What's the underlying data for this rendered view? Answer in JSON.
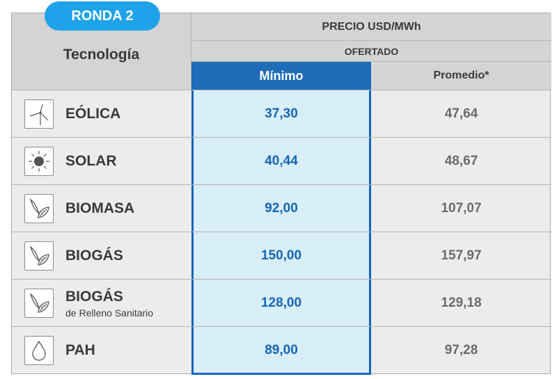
{
  "badge": "RONDA 2",
  "headers": {
    "technology": "Tecnología",
    "price": "PRECIO USD/MWh",
    "offered": "OFERTADO",
    "minimum": "Mínimo",
    "average": "Promedio*"
  },
  "rows": [
    {
      "name": "EÓLICA",
      "sub": "",
      "min": "37,30",
      "avg": "47,64",
      "icon": "wind-turbine-icon"
    },
    {
      "name": "SOLAR",
      "sub": "",
      "min": "40,44",
      "avg": "48,67",
      "icon": "sun-icon"
    },
    {
      "name": "BIOMASA",
      "sub": "",
      "min": "92,00",
      "avg": "107,07",
      "icon": "leaf-icon"
    },
    {
      "name": "BIOGÁS",
      "sub": "",
      "min": "150,00",
      "avg": "157,97",
      "icon": "leaf-icon"
    },
    {
      "name": "BIOGÁS",
      "sub": "de Relleno Sanitario",
      "min": "128,00",
      "avg": "129,18",
      "icon": "leaf-icon"
    },
    {
      "name": "PAH",
      "sub": "",
      "min": "89,00",
      "avg": "97,28",
      "icon": "water-drop-icon"
    }
  ],
  "colors": {
    "badge": "#1fa3e8",
    "min_header": "#1f6db8",
    "min_column": "#d8eef8",
    "min_text": "#1565b8",
    "header_bg": "#d4d4d4",
    "body_bg": "#ececec"
  },
  "chart_data": {
    "type": "table",
    "columns": [
      "Tecnología",
      "Mínimo",
      "Promedio*"
    ],
    "rows": [
      [
        "EÓLICA",
        37.3,
        47.64
      ],
      [
        "SOLAR",
        40.44,
        48.67
      ],
      [
        "BIOMASA",
        92.0,
        107.07
      ],
      [
        "BIOGÁS",
        150.0,
        157.97
      ],
      [
        "BIOGÁS de Relleno Sanitario",
        128.0,
        129.18
      ],
      [
        "PAH",
        89.0,
        97.28
      ]
    ]
  }
}
